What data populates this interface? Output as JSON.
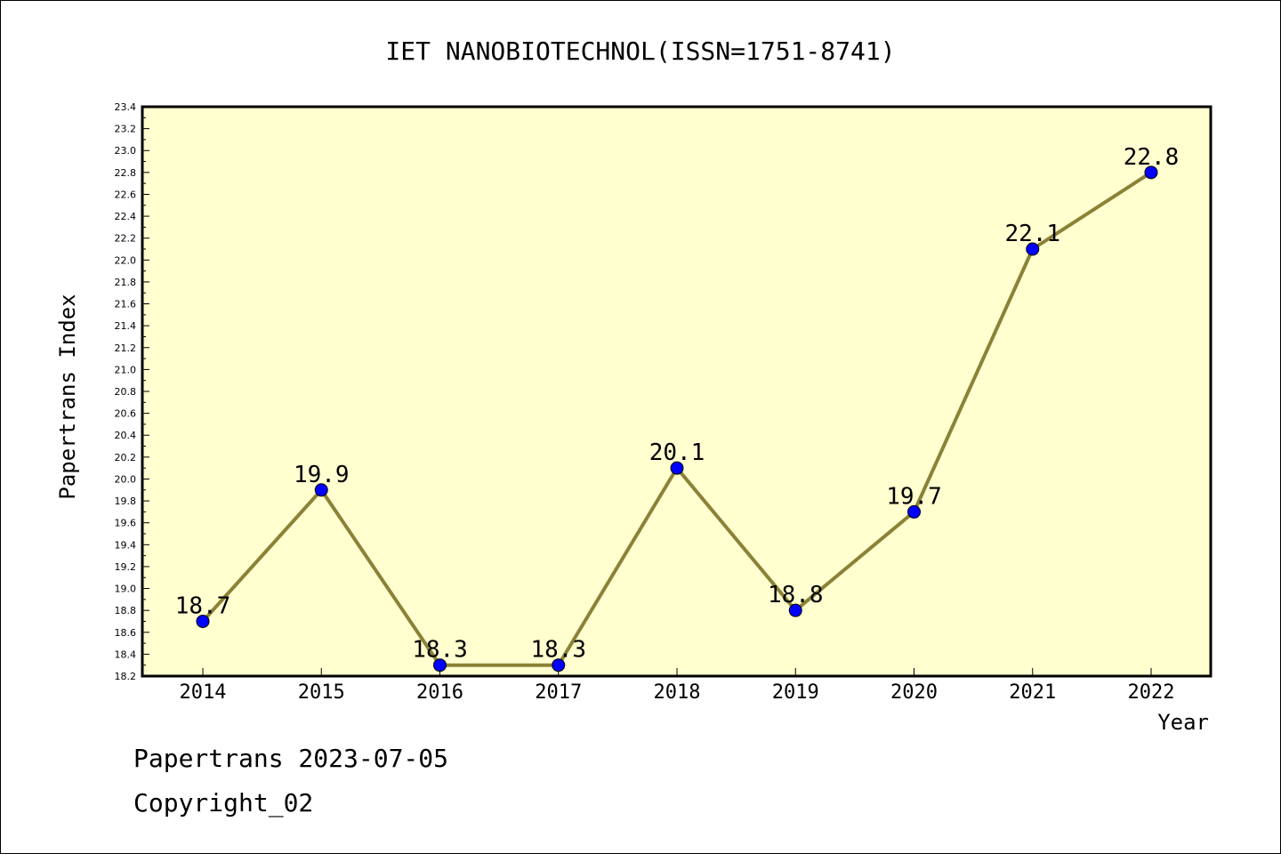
{
  "chart_data": {
    "type": "line",
    "title": "IET NANOBIOTECHNOL(ISSN=1751-8741)",
    "xlabel": "Year",
    "ylabel": "Papertrans Index",
    "categories": [
      "2014",
      "2015",
      "2016",
      "2017",
      "2018",
      "2019",
      "2020",
      "2021",
      "2022"
    ],
    "values": [
      18.7,
      19.9,
      18.3,
      18.3,
      20.1,
      18.8,
      19.7,
      22.1,
      22.8
    ],
    "data_labels": [
      "18.7",
      "19.9",
      "18.3",
      "18.3",
      "20.1",
      "18.8",
      "19.7",
      "22.1",
      "22.8"
    ],
    "ylim": [
      18.2,
      23.4
    ],
    "yticks": [
      "18.2",
      "18.4",
      "18.6",
      "18.8",
      "19.0",
      "19.2",
      "19.4",
      "19.6",
      "19.8",
      "20.0",
      "20.2",
      "20.4",
      "20.6",
      "20.8",
      "21.0",
      "21.2",
      "21.4",
      "21.6",
      "21.8",
      "22.0",
      "22.2",
      "22.4",
      "22.6",
      "22.8",
      "23.0",
      "23.2",
      "23.4"
    ],
    "grid": false,
    "colors": {
      "plot_background": "#ffffd0",
      "line": "#8b8237",
      "marker": "#0000ff"
    }
  },
  "footer": {
    "line1": "Papertrans 2023-07-05",
    "line2": "Copyright_02"
  }
}
